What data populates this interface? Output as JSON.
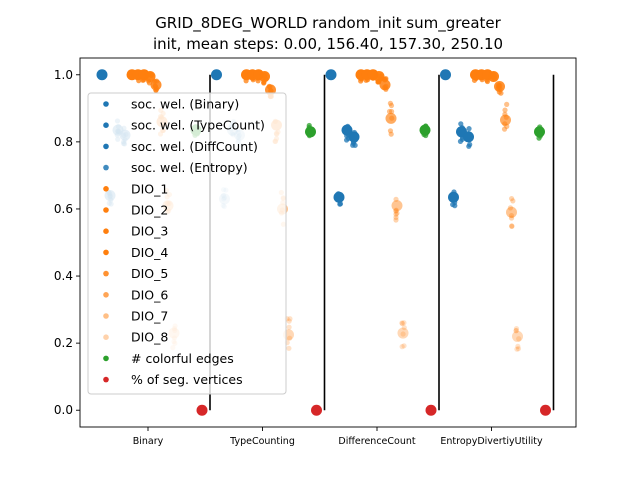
{
  "chart_data": {
    "type": "scatter",
    "title": "GRID_8DEG_WORLD random_init sum_greater",
    "subtitle": "init, mean steps: 0.00, 156.40, 157.30, 250.10",
    "xlabel": "",
    "ylabel": "",
    "ylim": [
      -0.05,
      1.05
    ],
    "yticks": [
      "0.0",
      "0.2",
      "0.4",
      "0.6",
      "0.8",
      "1.0"
    ],
    "categories": [
      "Binary",
      "TypeCounting",
      "DifferenceCount",
      "EntropyDivertiyUtility"
    ],
    "legend_position": "upper-left",
    "grid": false,
    "series": [
      {
        "name": "soc. wel. (Binary)",
        "color": "#1f77b4",
        "values": [
          1.0,
          1.0,
          1.0,
          1.0
        ]
      },
      {
        "name": "soc. wel. (TypeCount)",
        "color": "#1f77b4",
        "values": [
          0.64,
          0.63,
          0.635,
          0.635
        ]
      },
      {
        "name": "soc. wel. (DiffCount)",
        "color": "#1f77b4",
        "values": [
          0.835,
          0.835,
          0.835,
          0.83
        ]
      },
      {
        "name": "soc. wel. (Entropy)",
        "color": "#1f77b4",
        "values": [
          0.82,
          0.82,
          0.815,
          0.815
        ]
      },
      {
        "name": "DIO_1",
        "color": "#ff7f0e",
        "values": [
          1.0,
          1.0,
          1.0,
          1.0
        ]
      },
      {
        "name": "DIO_2",
        "color": "#ff7f0e",
        "values": [
          1.0,
          1.0,
          1.0,
          1.0
        ]
      },
      {
        "name": "DIO_3",
        "color": "#ff7f0e",
        "values": [
          1.0,
          1.0,
          1.0,
          1.0
        ]
      },
      {
        "name": "DIO_4",
        "color": "#ff7f0e",
        "values": [
          0.995,
          0.995,
          0.995,
          0.995
        ]
      },
      {
        "name": "DIO_5",
        "color": "#ff7f0e",
        "values": [
          0.97,
          0.955,
          0.97,
          0.965
        ]
      },
      {
        "name": "DIO_6",
        "color": "#ff7f0e",
        "values": [
          0.86,
          0.85,
          0.87,
          0.865
        ]
      },
      {
        "name": "DIO_7",
        "color": "#ff7f0e",
        "values": [
          0.61,
          0.6,
          0.61,
          0.59
        ]
      },
      {
        "name": "DIO_8",
        "color": "#ff7f0e",
        "values": [
          0.23,
          0.225,
          0.23,
          0.22
        ]
      },
      {
        "name": "# colorful edges",
        "color": "#2ca02c",
        "values": [
          0.835,
          0.83,
          0.835,
          0.83
        ]
      },
      {
        "name": "% of seg. vertices",
        "color": "#d62728",
        "values": [
          0.0,
          0.0,
          0.0,
          0.0
        ]
      }
    ],
    "range_bars": [
      [
        0.0,
        1.0
      ],
      [
        0.0,
        1.0
      ],
      [
        0.0,
        1.0
      ],
      [
        0.0,
        1.0
      ]
    ]
  }
}
